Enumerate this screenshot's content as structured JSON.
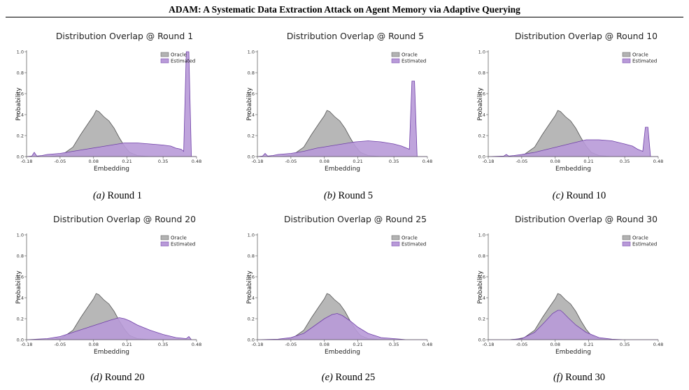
{
  "paper": {
    "header_title": "ADAM: A Systematic Data Extraction Attack on Agent Memory via Adaptive Querying"
  },
  "figure": {
    "xlabel": "Embedding",
    "ylabel": "Probability",
    "legend": [
      "Oracle",
      "Estimated"
    ],
    "colors": {
      "oracle": "#b3b3b3",
      "estimated": "#b89ad8",
      "estimated_line": "#6f3fa8",
      "oracle_line": "#555555"
    }
  },
  "panels": [
    {
      "title": "Distribution Overlap @ Round 1",
      "caption_label": "(a)",
      "caption_text": "Round 1"
    },
    {
      "title": "Distribution Overlap @ Round 5",
      "caption_label": "(b)",
      "caption_text": "Round 5"
    },
    {
      "title": "Distribution Overlap @ Round 10",
      "caption_label": "(c)",
      "caption_text": "Round 10"
    },
    {
      "title": "Distribution Overlap @ Round 20",
      "caption_label": "(d)",
      "caption_text": "Round 20"
    },
    {
      "title": "Distribution Overlap @ Round 25",
      "caption_label": "(e)",
      "caption_text": "Round 25"
    },
    {
      "title": "Distribution Overlap @ Round 30",
      "caption_label": "(f)",
      "caption_text": "Round 30"
    }
  ],
  "chart_data": [
    {
      "type": "area",
      "title": "Distribution Overlap @ Round 1",
      "xlabel": "Embedding",
      "ylabel": "Probability",
      "xlim": [
        -0.18,
        0.48
      ],
      "ylim": [
        0,
        1.0
      ],
      "x_ticks": [
        "-0.18",
        "-0.05",
        "0.08",
        "0.21",
        "0.35",
        "0.48"
      ],
      "y_ticks": [
        "0.0",
        "0.2",
        "0.4",
        "0.6",
        "0.8",
        "1.0"
      ],
      "legend": "top-right",
      "series": [
        {
          "name": "Oracle",
          "x": [
            -0.18,
            -0.1,
            -0.07,
            -0.04,
            0.0,
            0.03,
            0.06,
            0.08,
            0.09,
            0.1,
            0.12,
            0.14,
            0.16,
            0.18,
            0.2,
            0.22,
            0.25,
            0.3,
            0.48
          ],
          "values": [
            0,
            0,
            0.005,
            0.02,
            0.09,
            0.21,
            0.32,
            0.39,
            0.44,
            0.43,
            0.38,
            0.34,
            0.27,
            0.18,
            0.1,
            0.04,
            0.01,
            0,
            0
          ]
        },
        {
          "name": "Estimated",
          "x": [
            -0.18,
            -0.16,
            -0.15,
            -0.14,
            -0.12,
            -0.1,
            -0.05,
            0.0,
            0.05,
            0.1,
            0.15,
            0.2,
            0.25,
            0.3,
            0.35,
            0.38,
            0.4,
            0.42,
            0.43,
            0.44,
            0.45,
            0.46,
            0.48
          ],
          "values": [
            0,
            0.005,
            0.04,
            0.005,
            0.01,
            0.02,
            0.03,
            0.05,
            0.07,
            0.09,
            0.11,
            0.13,
            0.13,
            0.12,
            0.11,
            0.1,
            0.08,
            0.07,
            0.05,
            1.0,
            1.0,
            0,
            0
          ]
        }
      ]
    },
    {
      "type": "area",
      "title": "Distribution Overlap @ Round 5",
      "xlabel": "Embedding",
      "ylabel": "Probability",
      "xlim": [
        -0.18,
        0.48
      ],
      "ylim": [
        0,
        1.0
      ],
      "x_ticks": [
        "-0.18",
        "-0.05",
        "0.08",
        "0.21",
        "0.35",
        "0.48"
      ],
      "y_ticks": [
        "0.0",
        "0.2",
        "0.4",
        "0.6",
        "0.8",
        "1.0"
      ],
      "legend": "top-right",
      "series": [
        {
          "name": "Oracle",
          "x": [
            -0.18,
            -0.1,
            -0.07,
            -0.04,
            0.0,
            0.03,
            0.06,
            0.08,
            0.09,
            0.1,
            0.12,
            0.14,
            0.16,
            0.18,
            0.2,
            0.22,
            0.25,
            0.3,
            0.48
          ],
          "values": [
            0,
            0,
            0.005,
            0.02,
            0.09,
            0.21,
            0.32,
            0.39,
            0.44,
            0.43,
            0.38,
            0.34,
            0.27,
            0.18,
            0.1,
            0.04,
            0.01,
            0,
            0
          ]
        },
        {
          "name": "Estimated",
          "x": [
            -0.18,
            -0.16,
            -0.15,
            -0.14,
            -0.12,
            -0.1,
            -0.05,
            0.0,
            0.05,
            0.1,
            0.15,
            0.2,
            0.25,
            0.3,
            0.35,
            0.38,
            0.41,
            0.42,
            0.43,
            0.44,
            0.45,
            0.48
          ],
          "values": [
            0,
            0.005,
            0.03,
            0.005,
            0.01,
            0.02,
            0.03,
            0.05,
            0.08,
            0.1,
            0.12,
            0.14,
            0.15,
            0.14,
            0.12,
            0.1,
            0.07,
            0.72,
            0.72,
            0,
            0,
            0
          ]
        }
      ]
    },
    {
      "type": "area",
      "title": "Distribution Overlap @ Round 10",
      "xlabel": "Embedding",
      "ylabel": "Probability",
      "xlim": [
        -0.18,
        0.48
      ],
      "ylim": [
        0,
        1.0
      ],
      "x_ticks": [
        "-0.18",
        "-0.05",
        "0.08",
        "0.21",
        "0.35",
        "0.48"
      ],
      "y_ticks": [
        "0.0",
        "0.2",
        "0.4",
        "0.6",
        "0.8",
        "1.0"
      ],
      "legend": "top-right",
      "series": [
        {
          "name": "Oracle",
          "x": [
            -0.18,
            -0.1,
            -0.07,
            -0.04,
            0.0,
            0.03,
            0.06,
            0.08,
            0.09,
            0.1,
            0.12,
            0.14,
            0.16,
            0.18,
            0.2,
            0.22,
            0.25,
            0.3,
            0.48
          ],
          "values": [
            0,
            0,
            0.005,
            0.02,
            0.09,
            0.21,
            0.32,
            0.39,
            0.44,
            0.43,
            0.38,
            0.34,
            0.27,
            0.18,
            0.1,
            0.04,
            0.01,
            0,
            0
          ]
        },
        {
          "name": "Estimated",
          "x": [
            -0.18,
            -0.12,
            -0.11,
            -0.1,
            -0.08,
            -0.05,
            0.0,
            0.05,
            0.1,
            0.15,
            0.2,
            0.25,
            0.3,
            0.35,
            0.38,
            0.4,
            0.42,
            0.43,
            0.44,
            0.45,
            0.46,
            0.48
          ],
          "values": [
            0,
            0.005,
            0.02,
            0.005,
            0.01,
            0.02,
            0.04,
            0.07,
            0.1,
            0.13,
            0.16,
            0.16,
            0.15,
            0.12,
            0.1,
            0.07,
            0.05,
            0.28,
            0.28,
            0,
            0,
            0
          ]
        }
      ]
    },
    {
      "type": "area",
      "title": "Distribution Overlap @ Round 20",
      "xlabel": "Embedding",
      "ylabel": "Probability",
      "xlim": [
        -0.18,
        0.48
      ],
      "ylim": [
        0,
        1.0
      ],
      "x_ticks": [
        "-0.18",
        "-0.05",
        "0.08",
        "0.21",
        "0.35",
        "0.48"
      ],
      "y_ticks": [
        "0.0",
        "0.2",
        "0.4",
        "0.6",
        "0.8",
        "1.0"
      ],
      "legend": "top-right",
      "series": [
        {
          "name": "Oracle",
          "x": [
            -0.18,
            -0.1,
            -0.07,
            -0.04,
            0.0,
            0.03,
            0.06,
            0.08,
            0.09,
            0.1,
            0.12,
            0.14,
            0.16,
            0.18,
            0.2,
            0.22,
            0.25,
            0.3,
            0.48
          ],
          "values": [
            0,
            0,
            0.005,
            0.02,
            0.09,
            0.21,
            0.32,
            0.39,
            0.44,
            0.43,
            0.38,
            0.34,
            0.27,
            0.18,
            0.1,
            0.04,
            0.01,
            0,
            0
          ]
        },
        {
          "name": "Estimated",
          "x": [
            -0.18,
            -0.1,
            -0.05,
            0.0,
            0.05,
            0.1,
            0.15,
            0.18,
            0.2,
            0.22,
            0.25,
            0.3,
            0.35,
            0.4,
            0.44,
            0.45,
            0.46,
            0.48
          ],
          "values": [
            0,
            0.01,
            0.03,
            0.07,
            0.11,
            0.15,
            0.19,
            0.21,
            0.2,
            0.18,
            0.14,
            0.09,
            0.05,
            0.02,
            0.01,
            0.03,
            0,
            0
          ]
        }
      ]
    },
    {
      "type": "area",
      "title": "Distribution Overlap @ Round 25",
      "xlabel": "Embedding",
      "ylabel": "Probability",
      "xlim": [
        -0.18,
        0.48
      ],
      "ylim": [
        0,
        1.0
      ],
      "x_ticks": [
        "-0.18",
        "-0.05",
        "0.08",
        "0.21",
        "0.35",
        "0.48"
      ],
      "y_ticks": [
        "0.0",
        "0.2",
        "0.4",
        "0.6",
        "0.8",
        "1.0"
      ],
      "legend": "top-right",
      "series": [
        {
          "name": "Oracle",
          "x": [
            -0.18,
            -0.1,
            -0.07,
            -0.04,
            0.0,
            0.03,
            0.06,
            0.08,
            0.09,
            0.1,
            0.12,
            0.14,
            0.16,
            0.18,
            0.2,
            0.22,
            0.25,
            0.3,
            0.48
          ],
          "values": [
            0,
            0,
            0.005,
            0.02,
            0.09,
            0.21,
            0.32,
            0.39,
            0.44,
            0.43,
            0.38,
            0.34,
            0.27,
            0.18,
            0.1,
            0.04,
            0.01,
            0,
            0
          ]
        },
        {
          "name": "Estimated",
          "x": [
            -0.18,
            -0.1,
            -0.05,
            0.0,
            0.04,
            0.08,
            0.11,
            0.13,
            0.15,
            0.18,
            0.21,
            0.25,
            0.3,
            0.35,
            0.4,
            0.48
          ],
          "values": [
            0,
            0.005,
            0.02,
            0.06,
            0.13,
            0.2,
            0.24,
            0.25,
            0.23,
            0.18,
            0.12,
            0.06,
            0.02,
            0.01,
            0,
            0
          ]
        }
      ]
    },
    {
      "type": "area",
      "title": "Distribution Overlap @ Round 30",
      "xlabel": "Embedding",
      "ylabel": "Probability",
      "xlim": [
        -0.18,
        0.48
      ],
      "ylim": [
        0,
        1.0
      ],
      "x_ticks": [
        "-0.18",
        "-0.05",
        "0.08",
        "0.21",
        "0.35",
        "0.48"
      ],
      "y_ticks": [
        "0.0",
        "0.2",
        "0.4",
        "0.6",
        "0.8",
        "1.0"
      ],
      "legend": "top-right",
      "series": [
        {
          "name": "Oracle",
          "x": [
            -0.18,
            -0.1,
            -0.07,
            -0.04,
            0.0,
            0.03,
            0.06,
            0.08,
            0.09,
            0.1,
            0.12,
            0.14,
            0.16,
            0.18,
            0.2,
            0.22,
            0.25,
            0.3,
            0.48
          ],
          "values": [
            0,
            0,
            0.005,
            0.02,
            0.09,
            0.21,
            0.32,
            0.39,
            0.44,
            0.43,
            0.38,
            0.34,
            0.27,
            0.18,
            0.1,
            0.04,
            0.01,
            0,
            0
          ]
        },
        {
          "name": "Estimated",
          "x": [
            -0.18,
            -0.1,
            -0.05,
            0.0,
            0.04,
            0.07,
            0.09,
            0.1,
            0.11,
            0.13,
            0.16,
            0.2,
            0.25,
            0.3,
            0.35,
            0.48
          ],
          "values": [
            0,
            0,
            0.01,
            0.07,
            0.17,
            0.25,
            0.28,
            0.28,
            0.26,
            0.21,
            0.14,
            0.07,
            0.02,
            0.005,
            0,
            0
          ]
        }
      ]
    }
  ]
}
